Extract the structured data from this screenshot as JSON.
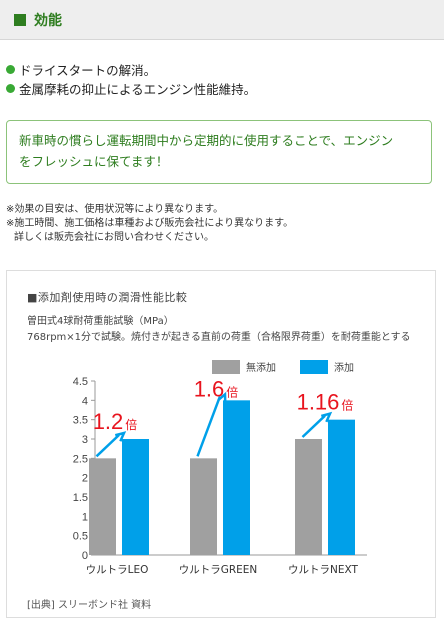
{
  "header": {
    "title": "効能"
  },
  "features": [
    "ドライスタートの解消。",
    "金属摩耗の抑止によるエンジン性能維持。"
  ],
  "note": {
    "line1": "新車時の慣らし運転期間中から定期的に使用することで、エンジン",
    "line2": "をフレッシュに保てます！"
  },
  "disclaimer": {
    "line1": "※効果の目安は、使用状況等により異なります。",
    "line2": "※施工時間、施工価格は車種および販売会社により異なります。",
    "line3": "詳しくは販売会社にお問い合わせください。"
  },
  "chart_data": {
    "type": "bar",
    "title": "■添加剤使用時の潤滑性能比較",
    "subtitle_line1": "曽田式4球耐荷重能試験（MPa）",
    "subtitle_line2": "768rpm×1分で試験。焼付きが起きる直前の荷重（合格限界荷重）を耐荷重能とする",
    "categories": [
      "ウルトラLEO",
      "ウルトラGREEN",
      "ウルトラNEXT"
    ],
    "series": [
      {
        "name": "無添加",
        "color": "#a0a0a0",
        "values": [
          2.5,
          2.5,
          3.0
        ]
      },
      {
        "name": "添加",
        "color": "#00a0e9",
        "values": [
          3.0,
          4.0,
          3.5
        ]
      }
    ],
    "ratios": [
      {
        "number": "1.2",
        "unit": "倍"
      },
      {
        "number": "1.6",
        "unit": "倍"
      },
      {
        "number": "1.16",
        "unit": "倍"
      }
    ],
    "ylim": [
      0,
      4.5
    ],
    "yticks": [
      "0",
      "0.5",
      "1",
      "1.5",
      "2",
      "2.5",
      "3",
      "3.5",
      "4",
      "4.5"
    ],
    "legend_position": "top-right",
    "source": "[出典] スリーボンド社 資料",
    "ratio_color": "#e8141e",
    "arrow_color": "#00a0e9"
  }
}
